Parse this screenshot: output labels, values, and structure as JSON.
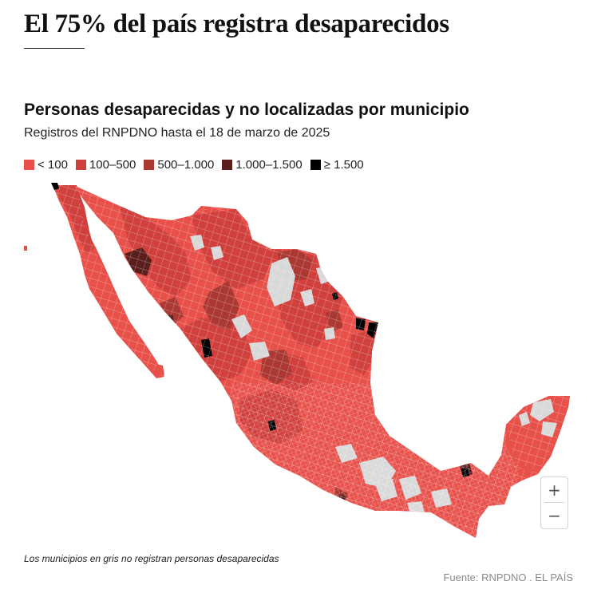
{
  "headline": "El 75% del país registra desaparecidos",
  "map": {
    "title": "Personas desaparecidas y no localizadas por municipio",
    "subtitle": "Registros del RNPDNO hasta el 18 de marzo de 2025",
    "legend": [
      {
        "label": "< 100",
        "color": "#e8504a"
      },
      {
        "label": "100–500",
        "color": "#d0413d"
      },
      {
        "label": "500–1.000",
        "color": "#ab3832"
      },
      {
        "label": "1.000–1.500",
        "color": "#5a1f1c"
      },
      {
        "label": "≥ 1.500",
        "color": "#000000"
      }
    ],
    "no_data_color": "#d9d9d9"
  },
  "zoom": {
    "in_label": "+",
    "out_label": "−"
  },
  "note": "Los municipios en gris no registran personas desaparecidas",
  "source": "Fuente: RNPDNO . EL PAÍS"
}
